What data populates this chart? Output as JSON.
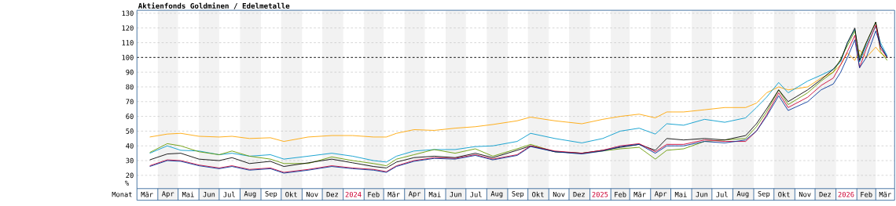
{
  "chart_data": {
    "type": "line",
    "title": "Aktienfonds Goldminen / Edelmetalle",
    "xlabel": "Monat",
    "ylabel": "%",
    "x": [
      "2023-03-20",
      "2023-04-15",
      "2023-05-05",
      "2023-06-01",
      "2023-07-01",
      "2023-07-20",
      "2023-08-15",
      "2023-09-15",
      "2023-10-05",
      "2023-11-10",
      "2023-12-15",
      "2024-01-15",
      "2024-02-15",
      "2024-03-05",
      "2024-03-20",
      "2024-04-15",
      "2024-05-15",
      "2024-06-15",
      "2024-07-15",
      "2024-08-10",
      "2024-09-15",
      "2024-10-05",
      "2024-11-10",
      "2024-12-20",
      "2025-01-20",
      "2025-02-15",
      "2025-03-15",
      "2025-04-08",
      "2025-04-25",
      "2025-05-20",
      "2025-06-20",
      "2025-07-20",
      "2025-08-20",
      "2025-09-05",
      "2025-09-20",
      "2025-10-08",
      "2025-10-22",
      "2025-11-20",
      "2025-12-10",
      "2025-12-28",
      "2026-01-08",
      "2026-01-18",
      "2026-01-29",
      "2026-02-05",
      "2026-02-15",
      "2026-03-01",
      "2026-03-08",
      "2026-03-18"
    ],
    "series": [
      {
        "color": "#ffa500",
        "values": [
          46,
          48,
          48.5,
          46.5,
          46,
          46.5,
          45,
          45.5,
          43,
          46,
          47,
          47,
          46,
          46,
          48.5,
          51,
          50.5,
          52,
          53,
          54.5,
          57,
          59.5,
          57,
          55,
          58,
          60,
          61.5,
          59,
          63,
          63,
          64.5,
          66,
          66,
          69,
          76,
          80,
          78,
          80,
          86,
          90,
          95,
          103,
          98,
          105,
          100,
          107,
          103,
          100
        ]
      },
      {
        "color": "#0099cc",
        "values": [
          35,
          40,
          37,
          36.5,
          34,
          35,
          33,
          34,
          31,
          33,
          35,
          33,
          30,
          29,
          33,
          36.5,
          37.5,
          37.5,
          39.5,
          40,
          43,
          48.5,
          45,
          42,
          45,
          50,
          52,
          48,
          55,
          54,
          58,
          56,
          59,
          66,
          73,
          83,
          76,
          84,
          88,
          92,
          97,
          110,
          119,
          97,
          108,
          121,
          110,
          101
        ]
      },
      {
        "color": "#669900",
        "values": [
          35.5,
          41.5,
          40,
          36,
          34,
          36.5,
          33,
          31,
          28,
          28,
          32.5,
          30,
          28,
          26.5,
          31,
          34,
          37.5,
          35,
          38,
          33,
          38,
          41,
          36,
          35,
          36.5,
          38,
          39,
          31,
          37,
          38,
          43,
          44,
          45,
          53,
          63,
          78,
          68,
          76,
          84,
          90,
          99,
          108,
          118,
          100,
          110,
          124,
          104,
          98
        ]
      },
      {
        "color": "#000000",
        "values": [
          30.5,
          34.5,
          35,
          31,
          30,
          32,
          28,
          29.5,
          26,
          28.5,
          31,
          28.5,
          26,
          25,
          29,
          32,
          33,
          32,
          35,
          32,
          37,
          40,
          36,
          35,
          37,
          39,
          41,
          37,
          45,
          44,
          45,
          44,
          47,
          55,
          65,
          78,
          70,
          78,
          85,
          92,
          98,
          110,
          120,
          98,
          110,
          124,
          108,
          100
        ]
      },
      {
        "color": "#cc0033",
        "values": [
          26.5,
          30.5,
          30,
          27,
          25,
          26.5,
          24,
          25,
          22,
          24,
          26.5,
          25,
          24,
          22.5,
          26.5,
          30,
          32,
          31.5,
          34,
          31,
          34,
          40,
          36.5,
          35,
          37,
          40,
          41.5,
          36,
          41,
          41,
          44,
          43,
          43,
          50,
          61,
          76,
          66,
          73,
          81,
          86,
          95,
          104,
          115,
          93,
          106,
          122,
          106,
          100
        ]
      },
      {
        "color": "#003399",
        "values": [
          26,
          30,
          29.5,
          26.5,
          24.5,
          26,
          23.5,
          24.5,
          21.5,
          23.5,
          26,
          24.5,
          23.5,
          22,
          26,
          29.5,
          31.5,
          31,
          33.5,
          30.5,
          33.5,
          39.5,
          36,
          34.5,
          36.5,
          39.5,
          41,
          35,
          40,
          40,
          43,
          42,
          44,
          50,
          60,
          74,
          64,
          70,
          78,
          82,
          90,
          100,
          112,
          93,
          100,
          118,
          108,
          100
        ]
      }
    ],
    "xlim": [
      "2023-03-01",
      "2026-03-29"
    ],
    "ylim": [
      11,
      132
    ],
    "yticks": [
      20,
      30,
      40,
      50,
      60,
      70,
      80,
      90,
      100,
      110,
      120,
      130
    ],
    "xticks": [
      {
        "value": "2023-03-16",
        "label": "Mär"
      },
      {
        "value": "2023-04-16",
        "label": "Apr"
      },
      {
        "value": "2023-05-16",
        "label": "Mai"
      },
      {
        "value": "2023-06-16",
        "label": "Jun"
      },
      {
        "value": "2023-07-16",
        "label": "Jul"
      },
      {
        "value": "2023-08-16",
        "label": "Aug"
      },
      {
        "value": "2023-09-16",
        "label": "Sep"
      },
      {
        "value": "2023-10-16",
        "label": "Okt"
      },
      {
        "value": "2023-11-16",
        "label": "Nov"
      },
      {
        "value": "2023-12-16",
        "label": "Dez"
      },
      {
        "value": "2024-01-16",
        "label": "2024"
      },
      {
        "value": "2024-02-15",
        "label": "Feb"
      },
      {
        "value": "2024-03-16",
        "label": "Mär"
      },
      {
        "value": "2024-04-16",
        "label": "Apr"
      },
      {
        "value": "2024-05-16",
        "label": "Mai"
      },
      {
        "value": "2024-06-16",
        "label": "Jun"
      },
      {
        "value": "2024-07-16",
        "label": "Jul"
      },
      {
        "value": "2024-08-16",
        "label": "Aug"
      },
      {
        "value": "2024-09-16",
        "label": "Sep"
      },
      {
        "value": "2024-10-16",
        "label": "Okt"
      },
      {
        "value": "2024-11-16",
        "label": "Nov"
      },
      {
        "value": "2024-12-16",
        "label": "Dez"
      },
      {
        "value": "2025-01-16",
        "label": "2025"
      },
      {
        "value": "2025-02-15",
        "label": "Feb"
      },
      {
        "value": "2025-03-16",
        "label": "Mär"
      },
      {
        "value": "2025-04-16",
        "label": "Apr"
      },
      {
        "value": "2025-05-16",
        "label": "Mai"
      },
      {
        "value": "2025-06-16",
        "label": "Jun"
      },
      {
        "value": "2025-07-16",
        "label": "Jul"
      },
      {
        "value": "2025-08-16",
        "label": "Aug"
      },
      {
        "value": "2025-09-16",
        "label": "Sep"
      },
      {
        "value": "2025-10-16",
        "label": "Okt"
      },
      {
        "value": "2025-11-16",
        "label": "Nov"
      },
      {
        "value": "2025-12-16",
        "label": "Dez"
      },
      {
        "value": "2026-01-16",
        "label": "2026"
      },
      {
        "value": "2026-02-15",
        "label": "Feb"
      },
      {
        "value": "2026-03-15",
        "label": "Mär"
      }
    ],
    "grid": "y",
    "ref_lines": [
      {
        "axis": "y",
        "value": 100,
        "color": "#000000",
        "line_style": "dashed"
      }
    ],
    "bands": [
      {
        "axis": "x",
        "from": "2023-04-01",
        "to": "2023-05-01",
        "color": "#f2f2f2"
      },
      {
        "axis": "x",
        "from": "2023-06-01",
        "to": "2023-07-01",
        "color": "#f2f2f2"
      },
      {
        "axis": "x",
        "from": "2023-08-01",
        "to": "2023-09-01",
        "color": "#f2f2f2"
      },
      {
        "axis": "x",
        "from": "2023-10-01",
        "to": "2023-11-01",
        "color": "#f2f2f2"
      },
      {
        "axis": "x",
        "from": "2023-12-01",
        "to": "2024-01-01",
        "color": "#f2f2f2"
      },
      {
        "axis": "x",
        "from": "2024-02-01",
        "to": "2024-03-01",
        "color": "#f2f2f2"
      },
      {
        "axis": "x",
        "from": "2024-04-01",
        "to": "2024-05-01",
        "color": "#f2f2f2"
      },
      {
        "axis": "x",
        "from": "2024-06-01",
        "to": "2024-07-01",
        "color": "#f2f2f2"
      },
      {
        "axis": "x",
        "from": "2024-08-01",
        "to": "2024-09-01",
        "color": "#f2f2f2"
      },
      {
        "axis": "x",
        "from": "2024-10-01",
        "to": "2024-11-01",
        "color": "#f2f2f2"
      },
      {
        "axis": "x",
        "from": "2024-12-01",
        "to": "2025-01-01",
        "color": "#f2f2f2"
      },
      {
        "axis": "x",
        "from": "2025-02-01",
        "to": "2025-03-01",
        "color": "#f2f2f2"
      },
      {
        "axis": "x",
        "from": "2025-04-01",
        "to": "2025-05-01",
        "color": "#f2f2f2"
      },
      {
        "axis": "x",
        "from": "2025-06-01",
        "to": "2025-07-01",
        "color": "#f2f2f2"
      },
      {
        "axis": "x",
        "from": "2025-08-01",
        "to": "2025-09-01",
        "color": "#f2f2f2"
      },
      {
        "axis": "x",
        "from": "2025-10-01",
        "to": "2025-11-01",
        "color": "#f2f2f2"
      },
      {
        "axis": "x",
        "from": "2025-12-01",
        "to": "2026-01-01",
        "color": "#f2f2f2"
      },
      {
        "axis": "x",
        "from": "2026-02-01",
        "to": "2026-03-01",
        "color": "#f2f2f2"
      }
    ]
  }
}
